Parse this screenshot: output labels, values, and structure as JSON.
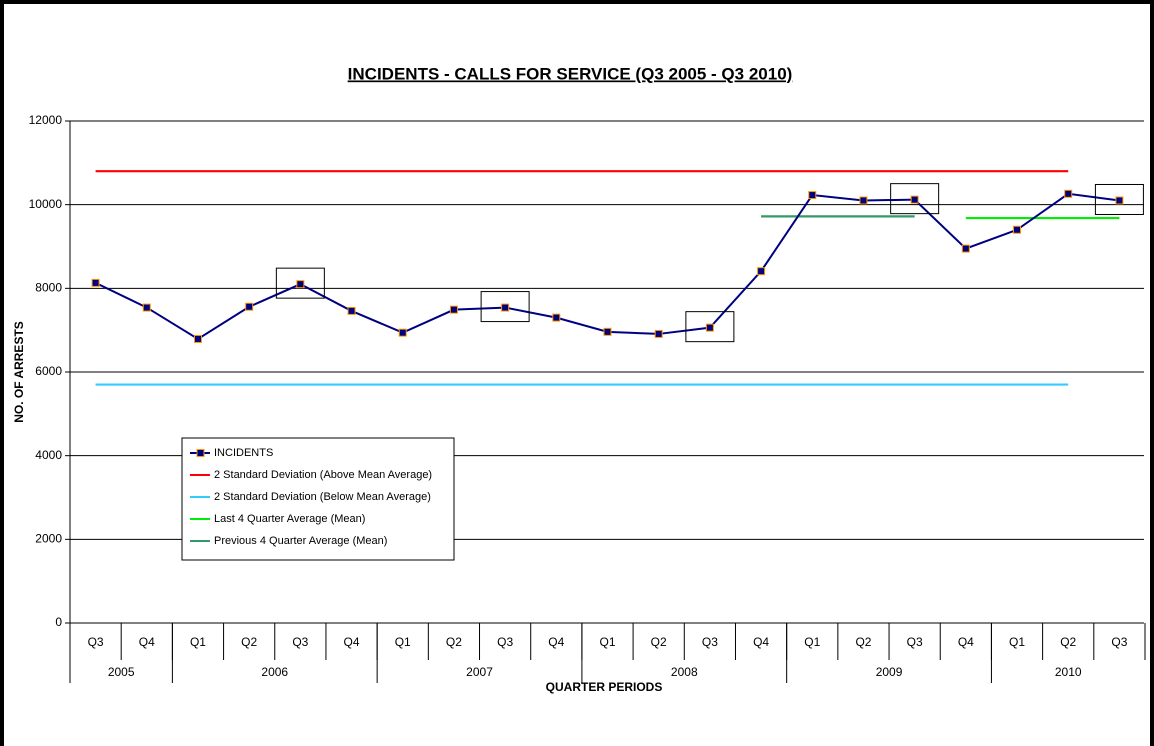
{
  "chart_data": {
    "type": "line",
    "title": "INCIDENTS - CALLS FOR SERVICE (Q3 2005 - Q3 2010)",
    "xlabel": "QUARTER PERIODS",
    "ylabel": "NO. OF ARRESTS",
    "categories": [
      "Q3",
      "Q4",
      "Q1",
      "Q2",
      "Q3",
      "Q4",
      "Q1",
      "Q2",
      "Q3",
      "Q4",
      "Q1",
      "Q2",
      "Q3",
      "Q4",
      "Q1",
      "Q2",
      "Q3",
      "Q4",
      "Q1",
      "Q2",
      "Q3"
    ],
    "category_groups": [
      "2005",
      "2005",
      "2006",
      "2006",
      "2006",
      "2006",
      "2007",
      "2007",
      "2007",
      "2007",
      "2008",
      "2008",
      "2008",
      "2008",
      "2009",
      "2009",
      "2009",
      "2009",
      "2010",
      "2010",
      "2010"
    ],
    "ylim": [
      0,
      12000
    ],
    "yticks": [
      0,
      2000,
      4000,
      6000,
      8000,
      10000,
      12000
    ],
    "grid": true,
    "legend": "lower left",
    "series": [
      {
        "name": "INCIDENTS",
        "color": "#000080",
        "marker_color": "#ff9900",
        "highlight": [
          4,
          8,
          12,
          16,
          20
        ],
        "values": [
          8130,
          7540,
          6790,
          7560,
          8100,
          7460,
          6940,
          7490,
          7540,
          7300,
          6960,
          6910,
          7060,
          8410,
          10230,
          10100,
          10120,
          8950,
          9400,
          10260,
          10100
        ]
      },
      {
        "name": "2 Standard Deviation (Above Mean Average)",
        "color": "#ff0000",
        "values": [
          10800,
          10800,
          10800,
          10800,
          10800,
          10800,
          10800,
          10800,
          10800,
          10800,
          10800,
          10800,
          10800,
          10800,
          10800,
          10800,
          10800,
          10800,
          10800,
          10800,
          null
        ]
      },
      {
        "name": "2 Standard Deviation (Below Mean Average)",
        "color": "#33ccff",
        "values": [
          5700,
          5700,
          5700,
          5700,
          5700,
          5700,
          5700,
          5700,
          5700,
          5700,
          5700,
          5700,
          5700,
          5700,
          5700,
          5700,
          5700,
          5700,
          5700,
          5700,
          null
        ]
      },
      {
        "name": "Last 4 Quarter Average (Mean)",
        "color": "#00ee00",
        "values": [
          null,
          null,
          null,
          null,
          null,
          null,
          null,
          null,
          null,
          null,
          null,
          null,
          null,
          null,
          null,
          null,
          null,
          9680,
          9680,
          9680,
          9680
        ]
      },
      {
        "name": "Previous 4 Quarter Average (Mean)",
        "color": "#339966",
        "values": [
          null,
          null,
          null,
          null,
          null,
          null,
          null,
          null,
          null,
          null,
          null,
          null,
          null,
          9720,
          9720,
          9720,
          9720,
          null,
          null,
          null,
          null
        ]
      }
    ]
  }
}
